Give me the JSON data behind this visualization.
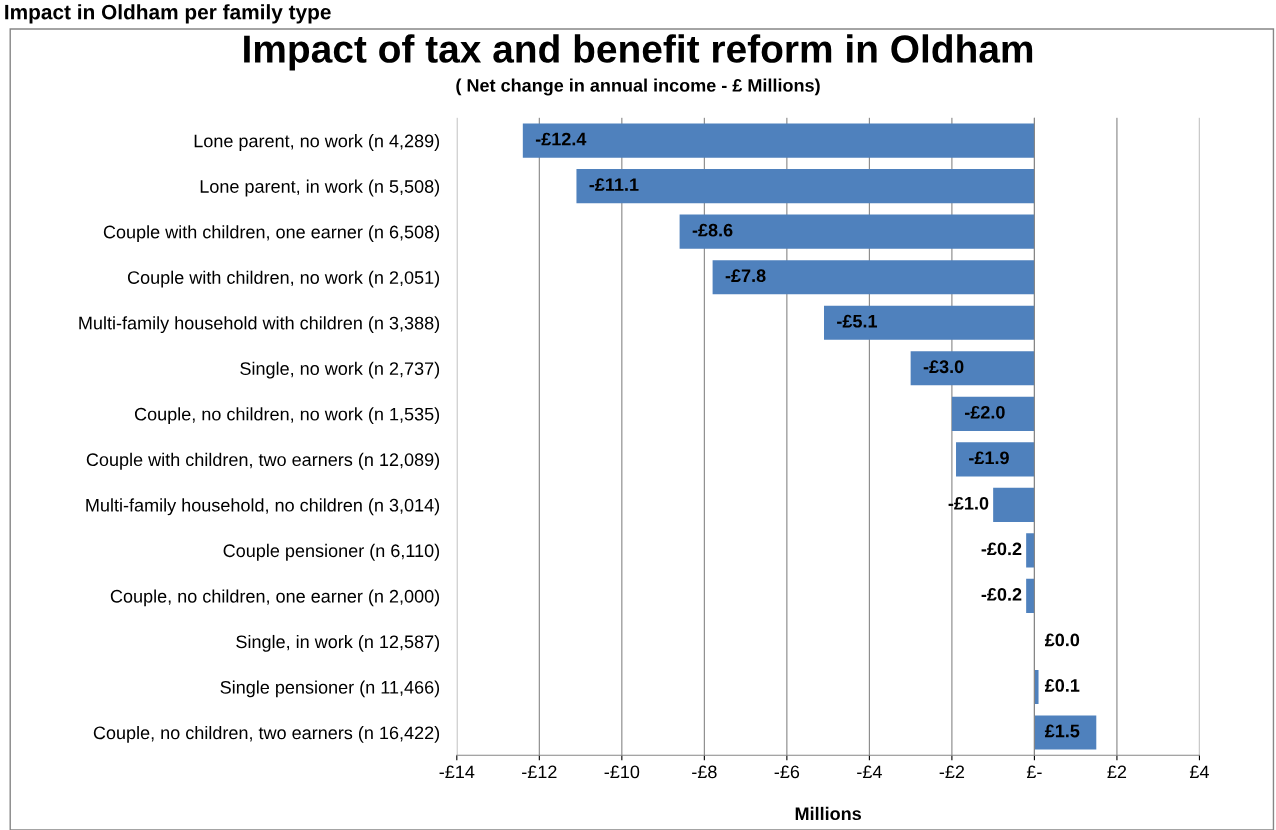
{
  "chart_data": {
    "type": "bar",
    "orientation": "horizontal",
    "title": "Impact of tax and benefit reform in Oldham",
    "subtitle": "( Net change in annual income - £ Millions)",
    "xlabel": "Millions",
    "annotations": [
      "Impact in Oldham per family type"
    ],
    "categories": [
      "Lone parent, no work (n 4,289)",
      "Lone parent, in work (n 5,508)",
      "Couple with children, one earner (n 6,508)",
      "Couple with children, no work (n 2,051)",
      "Multi-family household with children (n 3,388)",
      "Single, no work (n 2,737)",
      "Couple, no children, no work (n 1,535)",
      "Couple with children, two earners (n 12,089)",
      "Multi-family household, no children (n 3,014)",
      "Couple pensioner (n 6,110)",
      "Couple, no children, one earner (n 2,000)",
      "Single, in work (n 12,587)",
      "Single pensioner (n 11,466)",
      "Couple, no children, two earners (n 16,422)"
    ],
    "values": [
      -12.4,
      -11.1,
      -8.6,
      -7.8,
      -5.1,
      -3.0,
      -2.0,
      -1.9,
      -1.0,
      -0.2,
      -0.2,
      0.0,
      0.1,
      1.5
    ],
    "value_labels": [
      "-£12.4",
      "-£11.1",
      "-£8.6",
      "-£7.8",
      "-£5.1",
      "-£3.0",
      "-£2.0",
      "-£1.9",
      "-£1.0",
      "-£0.2",
      "-£0.2",
      "£0.0",
      "£0.1",
      "£1.5"
    ],
    "color": "#4f81bd",
    "xlim": [
      -14,
      4
    ],
    "xticks": [
      {
        "value": -14,
        "label": "-£14"
      },
      {
        "value": -12,
        "label": "-£12"
      },
      {
        "value": -10,
        "label": "-£10"
      },
      {
        "value": -8,
        "label": "-£8"
      },
      {
        "value": -6,
        "label": "-£6"
      },
      {
        "value": -4,
        "label": "-£4"
      },
      {
        "value": -2,
        "label": "-£2"
      },
      {
        "value": 0,
        "label": "£-"
      },
      {
        "value": 2,
        "label": "£2"
      },
      {
        "value": 4,
        "label": "£4"
      }
    ],
    "grid": "x"
  }
}
